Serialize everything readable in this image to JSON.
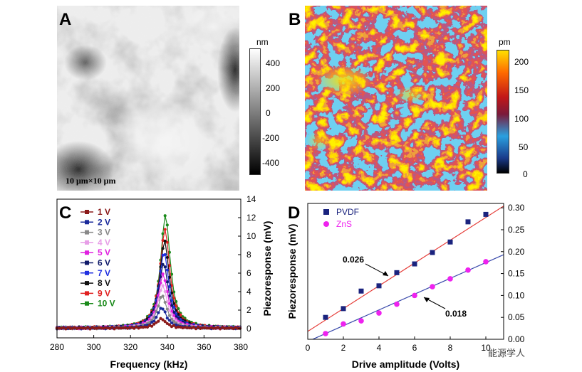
{
  "panels": {
    "a": {
      "label": "A",
      "scale_text": "10 μm×10 μm",
      "colorbar": {
        "unit": "nm",
        "ticks": [
          "400",
          "200",
          "0",
          "-200",
          "-400"
        ]
      }
    },
    "b": {
      "label": "B",
      "colorbar": {
        "unit": "pm",
        "ticks": [
          "200",
          "150",
          "100",
          "50",
          "0"
        ],
        "colors": [
          "#000000",
          "#1a3a8a",
          "#2aa0e0",
          "#7b1a3a",
          "#c21818",
          "#ff6a00",
          "#ffe000"
        ]
      }
    },
    "c": {
      "label": "C"
    },
    "d": {
      "label": "D"
    }
  },
  "chart_data": [
    {
      "type": "line",
      "title": "",
      "xlabel": "Frequency (kHz)",
      "ylabel": "Piezoresponse (mV)",
      "xlim": [
        280,
        380
      ],
      "ylim": [
        -1,
        14
      ],
      "xticks": [
        "280",
        "300",
        "320",
        "340",
        "360",
        "380"
      ],
      "yticks": [
        "0",
        "2",
        "4",
        "6",
        "8",
        "10",
        "12",
        "14"
      ],
      "peak_x": 339,
      "series": [
        {
          "name": "1 V",
          "color": "#8b1a1a",
          "peak": 1.0
        },
        {
          "name": "2 V",
          "color": "#1a2a9a",
          "peak": 2.2
        },
        {
          "name": "3 V",
          "color": "#888888",
          "peak": 3.5
        },
        {
          "name": "4 V",
          "color": "#e79ee7",
          "peak": 4.6
        },
        {
          "name": "5 V",
          "color": "#e020e0",
          "peak": 5.8
        },
        {
          "name": "6 V",
          "color": "#101a6a",
          "peak": 7.0
        },
        {
          "name": "7 V",
          "color": "#2030e0",
          "peak": 8.2
        },
        {
          "name": "8 V",
          "color": "#111111",
          "peak": 9.4
        },
        {
          "name": "9 V",
          "color": "#e02020",
          "peak": 10.7
        },
        {
          "name": "10 V",
          "color": "#1a8a1a",
          "peak": 12.2
        }
      ]
    },
    {
      "type": "scatter",
      "title": "",
      "xlabel": "Drive amplitude (Volts)",
      "ylabel": "Piezoresponse (mV)",
      "xlim": [
        0,
        11
      ],
      "ylim": [
        0,
        0.31
      ],
      "xticks": [
        "0",
        "2",
        "4",
        "6",
        "8",
        "10"
      ],
      "yticks": [
        "0.00",
        "0.05",
        "0.10",
        "0.15",
        "0.20",
        "0.25",
        "0.30"
      ],
      "series": [
        {
          "name": "PVDF",
          "color": "#1a237e",
          "marker": "square",
          "x": [
            1,
            2,
            3,
            4,
            5,
            6,
            7,
            8,
            9,
            10
          ],
          "y": [
            0.05,
            0.07,
            0.11,
            0.122,
            0.152,
            0.172,
            0.198,
            0.222,
            0.268,
            0.285
          ],
          "fit": {
            "slope": 0.026,
            "intercept": 0.018,
            "color": "#e53935",
            "label": "0.026"
          }
        },
        {
          "name": "ZnS",
          "color": "#ee22ee",
          "marker": "circle",
          "x": [
            1,
            2,
            3,
            4,
            5,
            6,
            7,
            8,
            9,
            10
          ],
          "y": [
            0.013,
            0.035,
            0.042,
            0.06,
            0.08,
            0.1,
            0.12,
            0.138,
            0.158,
            0.177
          ],
          "fit": {
            "slope": 0.018,
            "intercept": -0.005,
            "color": "#3949ab",
            "label": "0.018"
          }
        }
      ]
    }
  ],
  "watermark": "能源学人"
}
